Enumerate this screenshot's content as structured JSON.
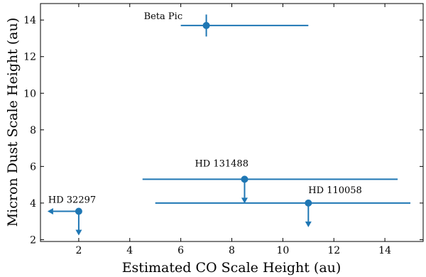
{
  "chart_data": {
    "type": "scatter",
    "xlabel": "Estimated CO Scale Height (au)",
    "ylabel": "Micron Dust Scale Height (au)",
    "xlim": [
      0.5,
      15.5
    ],
    "ylim": [
      1.9,
      14.9
    ],
    "xticks": [
      2,
      4,
      6,
      8,
      10,
      12,
      14
    ],
    "yticks": [
      2,
      4,
      6,
      8,
      10,
      12,
      14
    ],
    "grid": false,
    "color": "#1f77b4",
    "points": [
      {
        "label": "Beta Pic",
        "x": 7.0,
        "y": 13.7,
        "xerr": [
          6.0,
          11.0
        ],
        "yerr": [
          13.1,
          14.3
        ],
        "x_upper_limit": false,
        "y_upper_limit": false
      },
      {
        "label": "HD 131488",
        "x": 8.5,
        "y": 5.3,
        "xerr": [
          4.5,
          14.5
        ],
        "x_upper_limit": false,
        "y_upper_limit": true
      },
      {
        "label": "HD 110058",
        "x": 11.0,
        "y": 4.0,
        "xerr": [
          5.0,
          15.0
        ],
        "x_upper_limit": false,
        "y_upper_limit": true
      },
      {
        "label": "HD 32297",
        "x": 2.0,
        "y": 3.55,
        "x_upper_limit": true,
        "y_upper_limit": true
      }
    ]
  }
}
